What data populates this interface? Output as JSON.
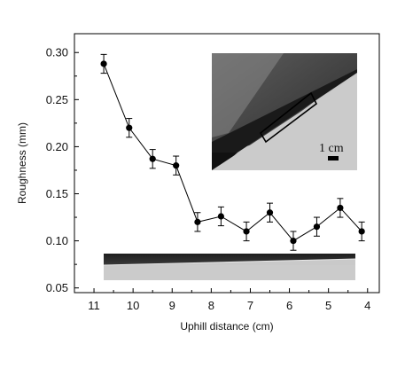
{
  "chart_data": {
    "type": "line",
    "xlabel": "Uphill distance (cm)",
    "ylabel": "Roughness (mm)",
    "xlim": [
      11.5,
      3.7
    ],
    "ylim": [
      0.045,
      0.32
    ],
    "x_reversed": true,
    "x_ticks": [
      "11",
      "10",
      "9",
      "8",
      "7",
      "6",
      "5",
      "4"
    ],
    "y_ticks": [
      "0.05",
      "0.10",
      "0.15",
      "0.20",
      "0.25",
      "0.30"
    ],
    "grid": false,
    "legend": "none",
    "series": [
      {
        "color": "#000000",
        "marker": "filled-circle",
        "x": [
          10.75,
          10.1,
          9.5,
          8.9,
          8.35,
          7.75,
          7.1,
          6.5,
          5.9,
          5.3,
          4.7,
          4.15
        ],
        "y": [
          0.288,
          0.22,
          0.187,
          0.18,
          0.12,
          0.126,
          0.11,
          0.13,
          0.1,
          0.115,
          0.135,
          0.11
        ],
        "error": [
          0.01,
          0.01,
          0.01,
          0.01,
          0.01,
          0.01,
          0.01,
          0.01,
          0.01,
          0.01,
          0.01,
          0.01
        ]
      }
    ],
    "inset_annotation": "1 cm"
  }
}
